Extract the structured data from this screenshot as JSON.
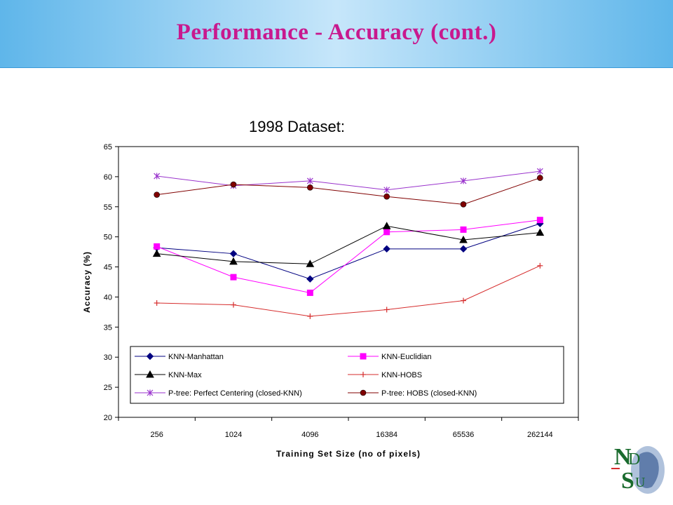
{
  "header": {
    "title": "Performance - Accuracy (cont.)"
  },
  "dataset_label": "1998 Dataset:",
  "chart_data": {
    "type": "line",
    "title": "",
    "xlabel": "Training Set Size (no of pixels)",
    "ylabel": "Accuracy (%)",
    "categories": [
      "256",
      "1024",
      "4096",
      "16384",
      "65536",
      "262144"
    ],
    "ylim": [
      20,
      65
    ],
    "yticks": [
      20,
      25,
      30,
      35,
      40,
      45,
      50,
      55,
      60,
      65
    ],
    "grid": false,
    "legend_position": "bottom-inside",
    "series": [
      {
        "name": "KNN-Manhattan",
        "values": [
          48.2,
          47.2,
          43.0,
          48.0,
          48.0,
          52.2
        ],
        "color": "#000080",
        "marker": "diamond"
      },
      {
        "name": "KNN-Euclidian",
        "values": [
          48.4,
          43.3,
          40.7,
          50.8,
          51.2,
          52.8
        ],
        "color": "#ff00ff",
        "marker": "square"
      },
      {
        "name": "KNN-Max",
        "values": [
          47.2,
          45.9,
          45.5,
          51.8,
          49.5,
          50.7
        ],
        "color": "#000000",
        "marker": "triangle"
      },
      {
        "name": "KNN-HOBS",
        "values": [
          39.0,
          38.7,
          36.8,
          37.9,
          39.4,
          45.2
        ],
        "color": "#d62d2d",
        "marker": "plus"
      },
      {
        "name": "P-tree: Perfect Centering (closed-KNN)",
        "values": [
          60.1,
          58.5,
          59.3,
          57.8,
          59.3,
          60.9
        ],
        "color": "#9932cc",
        "marker": "asterisk"
      },
      {
        "name": "P-tree: HOBS (closed-KNN)",
        "values": [
          57.0,
          58.7,
          58.2,
          56.7,
          55.4,
          59.8
        ],
        "color": "#800000",
        "marker": "circle"
      }
    ]
  },
  "logo": {
    "letters": [
      "N",
      "D",
      "S",
      "U"
    ]
  }
}
